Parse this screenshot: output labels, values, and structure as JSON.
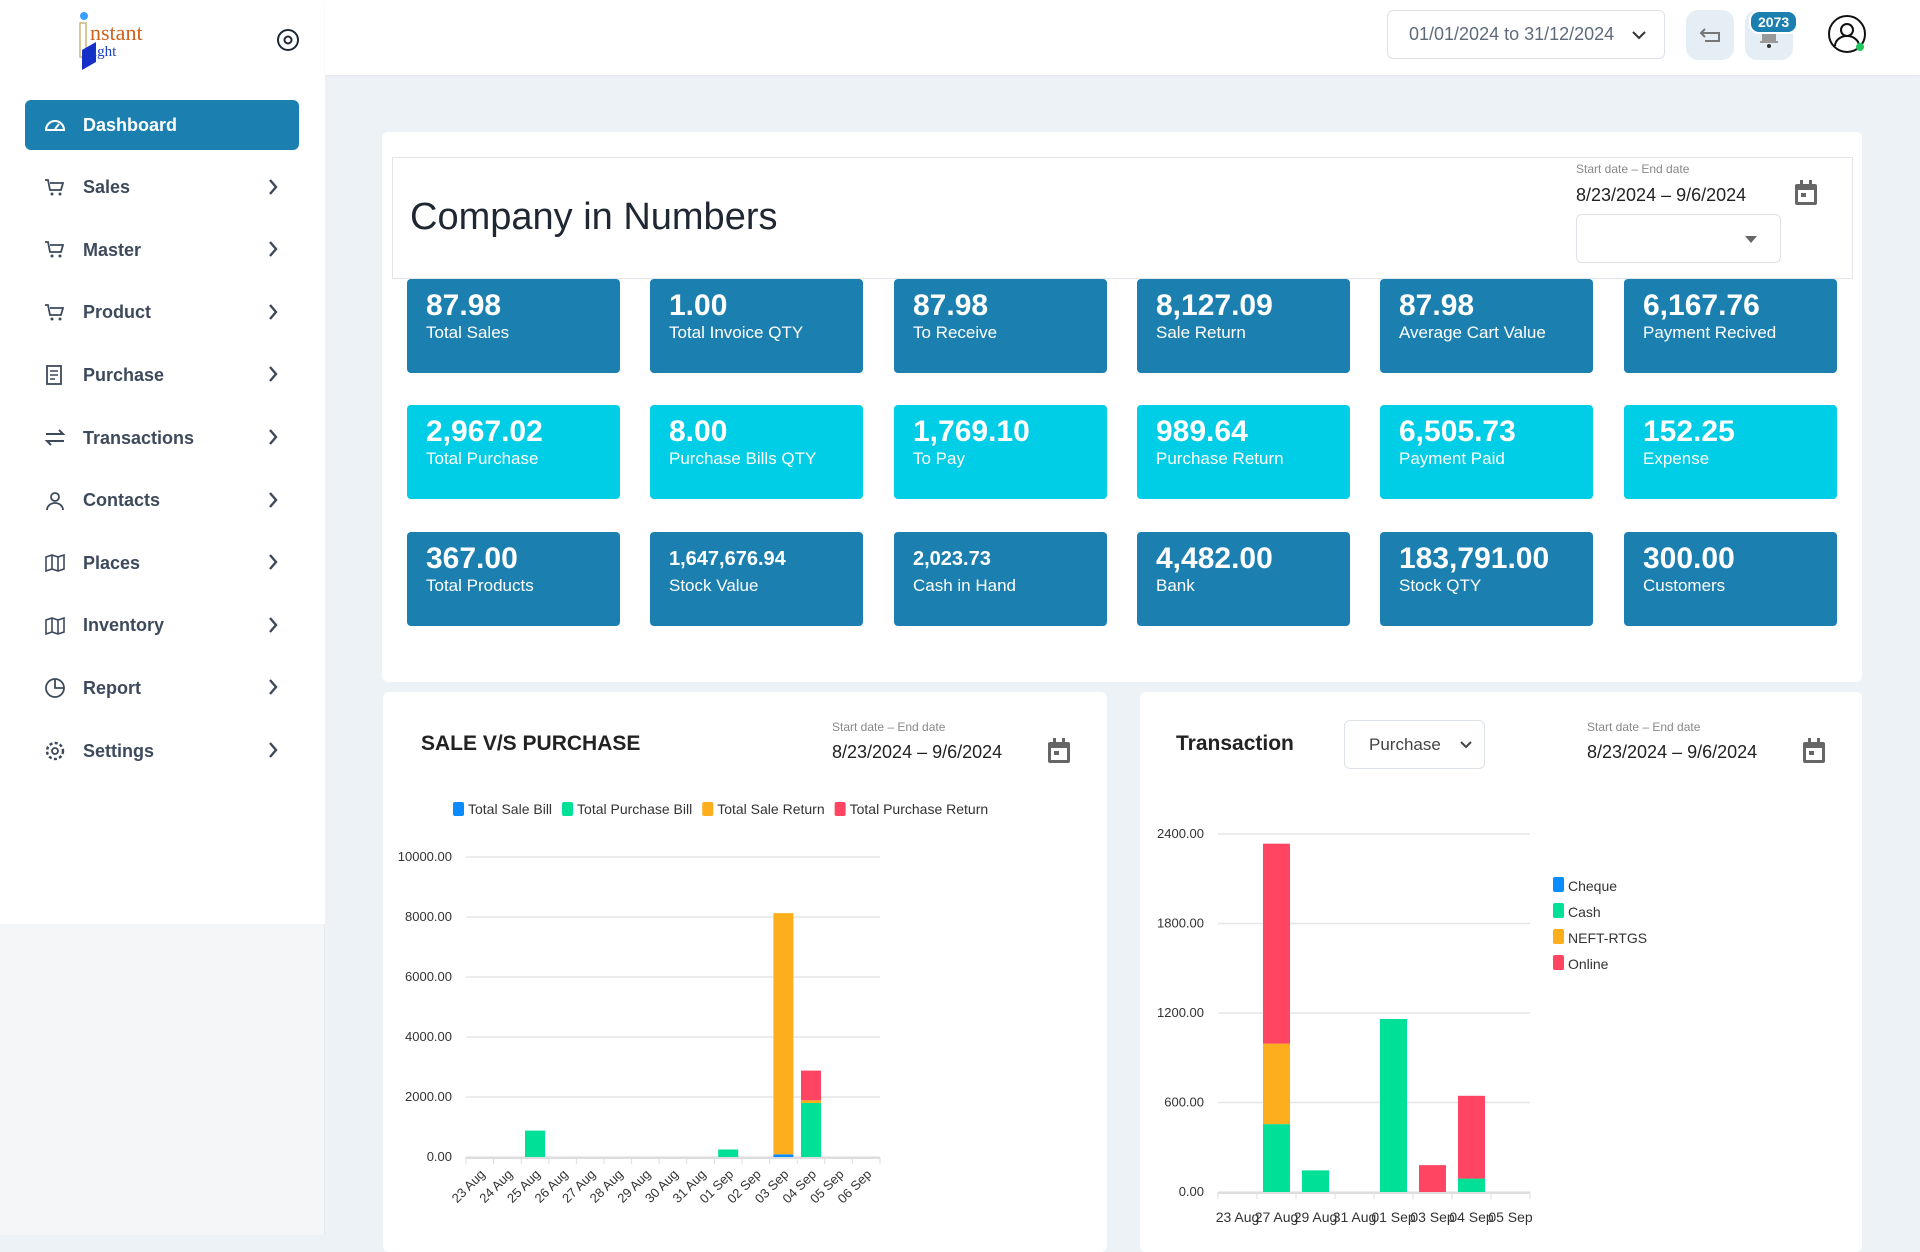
{
  "sidebar": {
    "logo_text": "Instant Light",
    "items": [
      {
        "label": "Dashboard",
        "icon": "gauge-icon",
        "active": true
      },
      {
        "label": "Sales",
        "icon": "cart-icon"
      },
      {
        "label": "Master",
        "icon": "cart-icon"
      },
      {
        "label": "Product",
        "icon": "cart-icon"
      },
      {
        "label": "Purchase",
        "icon": "receipt-icon"
      },
      {
        "label": "Transactions",
        "icon": "arrows-icon"
      },
      {
        "label": "Contacts",
        "icon": "person-icon"
      },
      {
        "label": "Places",
        "icon": "map-icon"
      },
      {
        "label": "Inventory",
        "icon": "map-icon"
      },
      {
        "label": "Report",
        "icon": "clock-icon"
      },
      {
        "label": "Settings",
        "icon": "gear-icon"
      }
    ]
  },
  "header": {
    "date_range": "01/01/2024 to 31/12/2024",
    "notification_count": "2073"
  },
  "numbers": {
    "title": "Company in Numbers",
    "date_label": "Start date – End date",
    "date_value": "8/23/2024 – 9/6/2024",
    "select_value": "",
    "rows": [
      [
        {
          "value": "87.98",
          "label": "Total Sales"
        },
        {
          "value": "1.00",
          "label": "Total Invoice QTY"
        },
        {
          "value": "87.98",
          "label": "To Receive"
        },
        {
          "value": "8,127.09",
          "label": "Sale Return"
        },
        {
          "value": "87.98",
          "label": "Average Cart Value"
        },
        {
          "value": "6,167.76",
          "label": "Payment Recived"
        }
      ],
      [
        {
          "value": "2,967.02",
          "label": "Total Purchase"
        },
        {
          "value": "8.00",
          "label": "Purchase Bills QTY"
        },
        {
          "value": "1,769.10",
          "label": "To Pay"
        },
        {
          "value": "989.64",
          "label": "Purchase Return"
        },
        {
          "value": "6,505.73",
          "label": "Payment Paid"
        },
        {
          "value": "152.25",
          "label": "Expense"
        }
      ],
      [
        {
          "value": "367.00",
          "label": "Total Products"
        },
        {
          "value": "1,647,676.94",
          "label": "Stock Value"
        },
        {
          "value": "2,023.73",
          "label": "Cash in Hand"
        },
        {
          "value": "4,482.00",
          "label": "Bank"
        },
        {
          "value": "183,791.00",
          "label": "Stock QTY"
        },
        {
          "value": "300.00",
          "label": "Customers"
        }
      ]
    ]
  },
  "sale_purchase": {
    "title": "SALE V/S PURCHASE",
    "date_label": "Start date – End date",
    "date_value": "8/23/2024 – 9/6/2024"
  },
  "transaction": {
    "title": "Transaction",
    "select_value": "Purchase",
    "date_label": "Start date – End date",
    "date_value": "8/23/2024 – 9/6/2024"
  },
  "chart_data": [
    {
      "type": "bar",
      "stacked": true,
      "ylim": [
        0,
        10000
      ],
      "yticks": [
        "0.00",
        "2000.00",
        "4000.00",
        "6000.00",
        "8000.00",
        "10000.00"
      ],
      "legend_position": "top",
      "grid": true,
      "categories": [
        "23 Aug",
        "24 Aug",
        "25 Aug",
        "26 Aug",
        "27 Aug",
        "28 Aug",
        "29 Aug",
        "30 Aug",
        "31 Aug",
        "01 Sep",
        "02 Sep",
        "03 Sep",
        "04 Sep",
        "05 Sep",
        "06 Sep"
      ],
      "series": [
        {
          "name": "Total Sale Bill",
          "color": "#0a8cff",
          "values": [
            0,
            0,
            0,
            0,
            0,
            0,
            0,
            0,
            0,
            0,
            0,
            88,
            0,
            0,
            0
          ]
        },
        {
          "name": "Total Purchase Bill",
          "color": "#00e096",
          "values": [
            0,
            0,
            880,
            0,
            0,
            0,
            0,
            0,
            0,
            250,
            0,
            0,
            1800,
            0,
            0
          ]
        },
        {
          "name": "Total Sale Return",
          "color": "#fdae1c",
          "values": [
            0,
            0,
            0,
            0,
            0,
            0,
            0,
            0,
            0,
            0,
            0,
            8040,
            90,
            0,
            0
          ]
        },
        {
          "name": "Total Purchase Return",
          "color": "#ff4562",
          "values": [
            0,
            0,
            0,
            0,
            0,
            0,
            0,
            0,
            0,
            0,
            0,
            0,
            990,
            0,
            0
          ]
        }
      ]
    },
    {
      "type": "bar",
      "stacked": true,
      "ylim": [
        0,
        2400
      ],
      "yticks": [
        "0.00",
        "600.00",
        "1200.00",
        "1800.00",
        "2400.00"
      ],
      "legend_position": "right",
      "grid": true,
      "categories": [
        "23 Aug",
        "27 Aug",
        "29 Aug",
        "31 Aug",
        "01 Sep",
        "03 Sep",
        "04 Sep",
        "05 Sep"
      ],
      "series": [
        {
          "name": "Cheque",
          "color": "#0a8cff",
          "values": [
            0,
            0,
            0,
            0,
            0,
            0,
            0,
            0
          ]
        },
        {
          "name": "Cash",
          "color": "#00e096",
          "values": [
            0,
            455,
            145,
            0,
            1160,
            0,
            90,
            0
          ]
        },
        {
          "name": "NEFT-RTGS",
          "color": "#fdae1c",
          "values": [
            0,
            540,
            0,
            0,
            0,
            0,
            0,
            0
          ]
        },
        {
          "name": "Online",
          "color": "#ff4562",
          "values": [
            0,
            1340,
            0,
            0,
            0,
            180,
            555,
            0
          ]
        }
      ]
    }
  ]
}
